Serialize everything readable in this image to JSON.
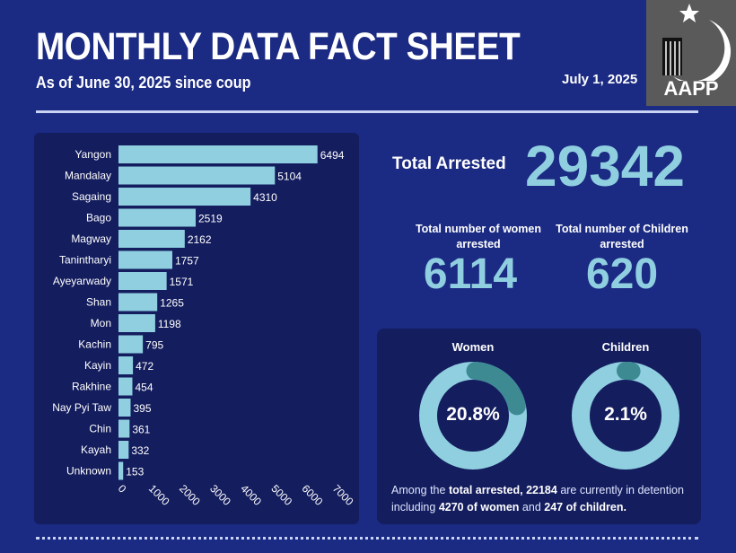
{
  "header": {
    "title": "MONTHLY DATA FACT SHEET",
    "subtitle": "As of June 30, 2025 since coup",
    "date": "July 1, 2025",
    "logo_text": "AAPP"
  },
  "totals": {
    "total_label": "Total Arrested",
    "total_value": "29342",
    "women_label": "Total number of women arrested",
    "women_value": "6114",
    "children_label": "Total number of Children arrested",
    "children_value": "620"
  },
  "donuts": [
    {
      "label": "Women",
      "percent": 20.8,
      "text": "20.8%"
    },
    {
      "label": "Children",
      "percent": 2.1,
      "text": "2.1%"
    }
  ],
  "note": {
    "p1": "Among the ",
    "b1": "total arrested, 22184",
    "p2": " are currently in detention including ",
    "b2": "4270 of women",
    "p3": " and ",
    "b3": "247 of children."
  },
  "colors": {
    "background": "#1b2a82",
    "panel": "#141d5e",
    "bar": "#8fcfe0",
    "arc": "#3d8a93"
  },
  "chart_data": {
    "type": "bar",
    "orientation": "horizontal",
    "categories": [
      "Yangon",
      "Mandalay",
      "Sagaing",
      "Bago",
      "Magway",
      "Tanintharyi",
      "Ayeyarwady",
      "Shan",
      "Mon",
      "Kachin",
      "Kayin",
      "Rakhine",
      "Nay Pyi Taw",
      "Chin",
      "Kayah",
      "Unknown"
    ],
    "values": [
      6494,
      5104,
      4310,
      2519,
      2162,
      1757,
      1571,
      1265,
      1198,
      795,
      472,
      454,
      395,
      361,
      332,
      153
    ],
    "xlim": [
      0,
      7000
    ],
    "xticks": [
      0,
      1000,
      2000,
      3000,
      4000,
      5000,
      6000,
      7000
    ],
    "grid": false
  }
}
